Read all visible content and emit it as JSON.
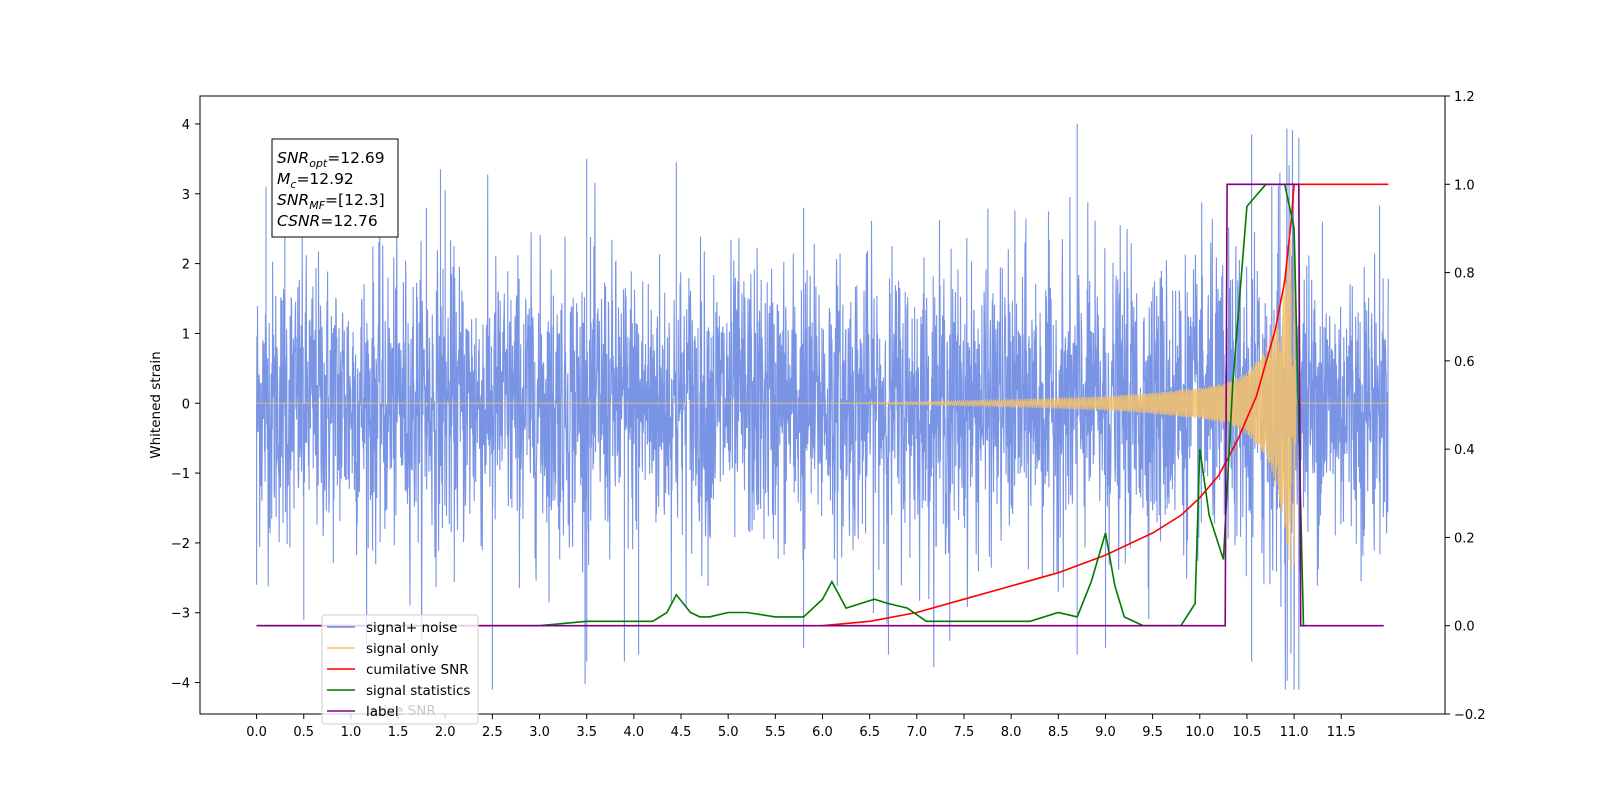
{
  "chart_data": {
    "type": "line",
    "title": "",
    "xlabel": "",
    "ylabel": "Whitened strain",
    "ylabel_right": "",
    "xlim": [
      -0.6,
      12.6
    ],
    "ylim": [
      -4.45,
      4.4
    ],
    "ylim_right": [
      -0.2,
      1.2
    ],
    "xticks": [
      "0.0",
      "0.5",
      "1.0",
      "1.5",
      "2.0",
      "2.5",
      "3.0",
      "3.5",
      "4.0",
      "4.5",
      "5.0",
      "5.5",
      "6.0",
      "6.5",
      "7.0",
      "7.5",
      "8.0",
      "8.5",
      "9.0",
      "9.5",
      "10.0",
      "10.5",
      "11.0",
      "11.5"
    ],
    "yticks_left": [
      "4",
      "3",
      "2",
      "1",
      "0",
      "−1",
      "−2",
      "−3",
      "−4"
    ],
    "yticks_right": [
      "1.2",
      "1.0",
      "0.8",
      "0.6",
      "0.4",
      "0.2",
      "0.0",
      "−0.2"
    ],
    "grid": false,
    "legend_position": "lower-left",
    "info_box": [
      {
        "main": "SNR",
        "sub": "opt",
        "value": "=12.69"
      },
      {
        "main": "M",
        "sub": "c",
        "value": "=12.92"
      },
      {
        "main": "SNR",
        "sub": "MF",
        "value": "=[12.3]"
      },
      {
        "main": "CSNR",
        "sub": "",
        "value": "=12.76"
      }
    ],
    "legend": [
      {
        "label": "signal+ noise",
        "color": "#6a88e2"
      },
      {
        "label": "signal only",
        "color": "#f5c26b"
      },
      {
        "label": "cumilative SNR",
        "color": "#ff0000"
      },
      {
        "label": "signal statistics",
        "color": "#007a00"
      },
      {
        "label": "label",
        "color": "#800080"
      }
    ],
    "legend_ghost_text": "lative SNR",
    "series": [
      {
        "name": "signal+ noise",
        "axis": "left",
        "color": "#6a88e2",
        "noise_sigma": 1.0,
        "x_range": [
          0.0,
          12.0
        ],
        "peak_points": [
          [
            0.1,
            3.1
          ],
          [
            0.3,
            2.4
          ],
          [
            1.8,
            2.8
          ],
          [
            1.95,
            3.35
          ],
          [
            2.0,
            3.05
          ],
          [
            3.5,
            3.5
          ],
          [
            4.45,
            3.45
          ],
          [
            5.8,
            2.8
          ],
          [
            8.7,
            4.0
          ],
          [
            10.55,
            3.85
          ],
          [
            10.85,
            3.3
          ],
          [
            11.05,
            3.8
          ],
          [
            11.3,
            2.6
          ]
        ],
        "trough_points": [
          [
            0.0,
            -2.6
          ],
          [
            0.5,
            -3.1
          ],
          [
            2.5,
            -4.1
          ],
          [
            3.5,
            -3.7
          ],
          [
            3.9,
            -3.7
          ],
          [
            4.05,
            -3.6
          ],
          [
            5.8,
            -3.5
          ],
          [
            6.7,
            -3.6
          ],
          [
            7.35,
            -3.4
          ],
          [
            8.7,
            -3.6
          ],
          [
            9.0,
            -3.5
          ],
          [
            10.55,
            -3.7
          ],
          [
            11.05,
            -4.1
          ]
        ]
      },
      {
        "name": "signal only",
        "axis": "left",
        "color": "#f5c26b",
        "description": "chirp from ~6.0 to 11.0, amplitude growing to ~2.9 near 11.0",
        "envelope": {
          "x": [
            6.0,
            7.0,
            8.0,
            9.0,
            9.5,
            10.0,
            10.3,
            10.5,
            10.7,
            10.85,
            10.95,
            11.0,
            11.02
          ],
          "amp": [
            0.0,
            0.02,
            0.05,
            0.1,
            0.15,
            0.22,
            0.3,
            0.45,
            0.75,
            1.4,
            2.3,
            2.9,
            0.0
          ]
        }
      },
      {
        "name": "cumilative SNR",
        "axis": "right",
        "color": "#ff0000",
        "x": [
          6.0,
          6.5,
          7.0,
          7.5,
          8.0,
          8.5,
          9.0,
          9.5,
          9.8,
          10.0,
          10.2,
          10.4,
          10.6,
          10.8,
          10.9,
          10.97,
          11.0,
          11.5,
          12.0
        ],
        "y": [
          0.0,
          0.01,
          0.03,
          0.06,
          0.09,
          0.12,
          0.16,
          0.21,
          0.25,
          0.29,
          0.34,
          0.42,
          0.52,
          0.67,
          0.78,
          0.92,
          1.0,
          1.0,
          1.0
        ]
      },
      {
        "name": "signal statistics",
        "axis": "right",
        "color": "#007a00",
        "x": [
          0.0,
          3.0,
          3.5,
          4.0,
          4.2,
          4.35,
          4.45,
          4.6,
          4.7,
          4.8,
          5.0,
          5.2,
          5.5,
          5.8,
          6.0,
          6.1,
          6.25,
          6.4,
          6.55,
          6.7,
          6.9,
          7.1,
          7.4,
          7.8,
          8.2,
          8.5,
          8.7,
          8.85,
          9.0,
          9.1,
          9.2,
          9.4,
          9.8,
          9.95,
          10.0,
          10.1,
          10.25,
          10.35,
          10.5,
          10.7,
          10.9,
          11.0,
          11.1
        ],
        "y": [
          0.0,
          0.0,
          0.01,
          0.01,
          0.01,
          0.03,
          0.07,
          0.03,
          0.02,
          0.02,
          0.03,
          0.03,
          0.02,
          0.02,
          0.06,
          0.1,
          0.04,
          0.05,
          0.06,
          0.05,
          0.04,
          0.01,
          0.01,
          0.01,
          0.01,
          0.03,
          0.02,
          0.1,
          0.21,
          0.09,
          0.02,
          0.0,
          0.0,
          0.05,
          0.4,
          0.25,
          0.15,
          0.55,
          0.95,
          1.0,
          1.0,
          0.9,
          0.0
        ]
      },
      {
        "name": "label",
        "axis": "right",
        "color": "#800080",
        "x": [
          0.0,
          10.27,
          10.29,
          11.05,
          11.07,
          11.95
        ],
        "y": [
          0.0,
          0.0,
          1.0,
          1.0,
          0.0,
          0.0
        ]
      }
    ]
  }
}
